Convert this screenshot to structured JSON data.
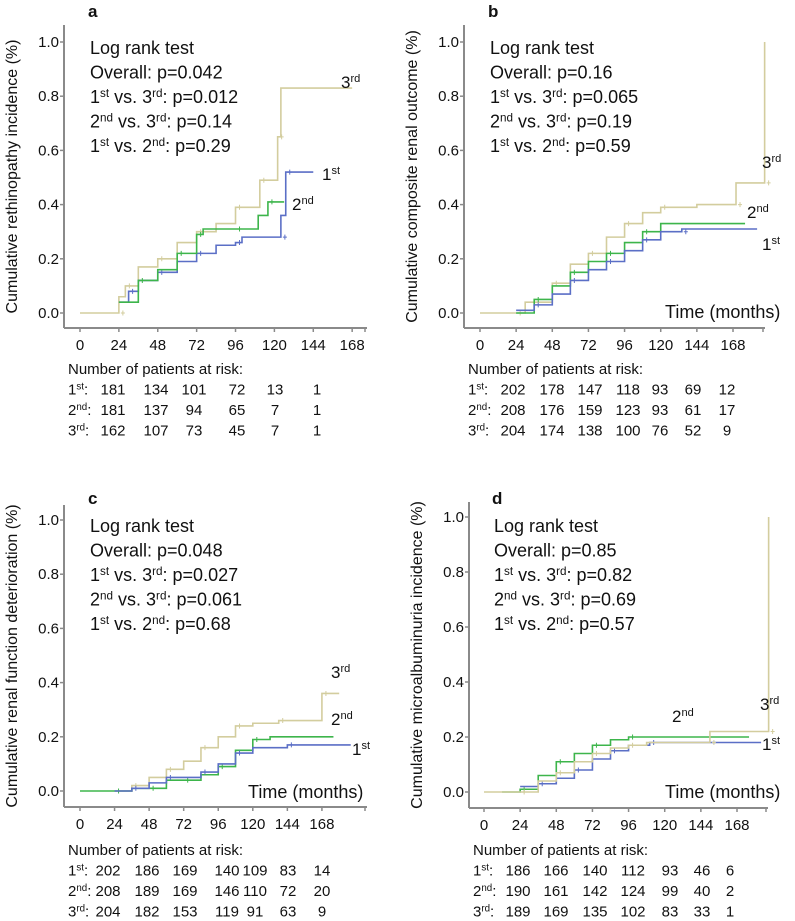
{
  "colors": {
    "1st": "#5b6fc6",
    "2nd": "#3db54b",
    "3rd": "#d3cd9e",
    "axis": "#8a8a8a"
  },
  "chart_data": [
    {
      "type": "line",
      "panel": "a",
      "ylabel": "Cumulative rethinopathy incidence (%)",
      "xlabel": "",
      "yticks": [
        "0.0",
        "0.2",
        "0.4",
        "0.6",
        "0.8",
        "1.0"
      ],
      "xticks": [
        "0",
        "24",
        "48",
        "72",
        "96",
        "120",
        "144",
        "168"
      ],
      "xlim": [
        0,
        176
      ],
      "ylim": [
        0,
        1
      ],
      "stats": [
        [
          "Log rank test"
        ],
        [
          "Overall: p=0.042"
        ],
        [
          "1",
          "st",
          " vs. 3",
          "rd",
          ": p=0.012"
        ],
        [
          "2",
          "nd",
          " vs. 3",
          "rd",
          ": p=0.14"
        ],
        [
          "1",
          "st",
          " vs. 2",
          "nd",
          ": p=0.29"
        ]
      ],
      "risk": {
        "header": "Number of patients at risk:",
        "rows": [
          {
            "group": [
              "1",
              "st",
              ":"
            ],
            "values": [
              "181",
              "134",
              "101",
              "72",
              "13",
              "1"
            ]
          },
          {
            "group": [
              "2",
              "nd",
              ":"
            ],
            "values": [
              "181",
              "137",
              "94",
              "65",
              "7",
              "1"
            ]
          },
          {
            "group": [
              "3",
              "rd",
              ":"
            ],
            "values": [
              "162",
              "107",
              "73",
              "45",
              "7",
              "1"
            ]
          }
        ]
      },
      "series": [
        {
          "name": "3rd",
          "label": [
            "3",
            "rd"
          ],
          "points": [
            [
              0,
              0
            ],
            [
              24,
              0
            ],
            [
              24,
              0.06
            ],
            [
              28,
              0.1
            ],
            [
              36,
              0.17
            ],
            [
              48,
              0.2
            ],
            [
              60,
              0.26
            ],
            [
              72,
              0.3
            ],
            [
              84,
              0.33
            ],
            [
              96,
              0.39
            ],
            [
              111,
              0.39
            ],
            [
              111,
              0.49
            ],
            [
              122,
              0.49
            ],
            [
              122,
              0.65
            ],
            [
              124,
              0.83
            ],
            [
              168,
              0.83
            ]
          ]
        },
        {
          "name": "1st",
          "label": [
            "1",
            "st"
          ],
          "points": [
            [
              24,
              0.04
            ],
            [
              30,
              0.08
            ],
            [
              36,
              0.12
            ],
            [
              48,
              0.15
            ],
            [
              60,
              0.19
            ],
            [
              72,
              0.22
            ],
            [
              84,
              0.25
            ],
            [
              96,
              0.26
            ],
            [
              100,
              0.28
            ],
            [
              124,
              0.28
            ],
            [
              124,
              0.36
            ],
            [
              127,
              0.52
            ],
            [
              144,
              0.52
            ]
          ]
        },
        {
          "name": "2nd",
          "label": [
            "2",
            "nd"
          ],
          "points": [
            [
              24,
              0.04
            ],
            [
              36,
              0.12
            ],
            [
              48,
              0.16
            ],
            [
              60,
              0.22
            ],
            [
              68,
              0.22
            ],
            [
              72,
              0.29
            ],
            [
              76,
              0.31
            ],
            [
              96,
              0.31
            ],
            [
              110,
              0.36
            ],
            [
              116,
              0.41
            ],
            [
              126,
              0.41
            ]
          ]
        }
      ]
    },
    {
      "type": "line",
      "panel": "b",
      "ylabel": "Cumulative composite renal outcome (%)",
      "xlabel": "Time (months)",
      "yticks": [
        "0.0",
        "0.2",
        "0.4",
        "0.6",
        "0.8",
        "1.0"
      ],
      "xticks": [
        "0",
        "24",
        "48",
        "72",
        "96",
        "120",
        "144",
        "168"
      ],
      "xlim": [
        0,
        189
      ],
      "ylim": [
        0,
        1
      ],
      "stats": [
        [
          "Log rank test"
        ],
        [
          "Overall: p=0.16"
        ],
        [
          "1",
          "st",
          " vs. 3",
          "rd",
          ": p=0.065"
        ],
        [
          "2",
          "nd",
          " vs. 3",
          "rd",
          ": p=0.19"
        ],
        [
          "1",
          "st",
          " vs. 2",
          "nd",
          ": p=0.59"
        ]
      ],
      "risk": {
        "header": "Number of patients at risk:",
        "rows": [
          {
            "group": [
              "1",
              "st",
              ":"
            ],
            "values": [
              "202",
              "178",
              "147",
              "118",
              "93",
              "69",
              "12"
            ]
          },
          {
            "group": [
              "2",
              "nd",
              ":"
            ],
            "values": [
              "208",
              "176",
              "159",
              "123",
              "93",
              "61",
              "17"
            ]
          },
          {
            "group": [
              "3",
              "rd",
              ":"
            ],
            "values": [
              "204",
              "174",
              "138",
              "100",
              "76",
              "52",
              "9"
            ]
          }
        ]
      },
      "series": [
        {
          "name": "3rd",
          "label": [
            "3",
            "rd"
          ],
          "points": [
            [
              0,
              0
            ],
            [
              24,
              0
            ],
            [
              30,
              0.04
            ],
            [
              48,
              0.11
            ],
            [
              60,
              0.18
            ],
            [
              72,
              0.22
            ],
            [
              84,
              0.28
            ],
            [
              96,
              0.33
            ],
            [
              108,
              0.37
            ],
            [
              120,
              0.39
            ],
            [
              144,
              0.4
            ],
            [
              170,
              0.4
            ],
            [
              170,
              0.48
            ],
            [
              189,
              0.48
            ],
            [
              189,
              1.0
            ]
          ]
        },
        {
          "name": "2nd",
          "label": [
            "2",
            "nd"
          ],
          "points": [
            [
              24,
              0
            ],
            [
              36,
              0.05
            ],
            [
              48,
              0.1
            ],
            [
              60,
              0.15
            ],
            [
              72,
              0.19
            ],
            [
              84,
              0.22
            ],
            [
              96,
              0.26
            ],
            [
              108,
              0.3
            ],
            [
              120,
              0.33
            ],
            [
              176,
              0.33
            ]
          ]
        },
        {
          "name": "1st",
          "label": [
            "1",
            "st"
          ],
          "points": [
            [
              24,
              0.01
            ],
            [
              36,
              0.03
            ],
            [
              48,
              0.07
            ],
            [
              60,
              0.12
            ],
            [
              72,
              0.16
            ],
            [
              84,
              0.19
            ],
            [
              96,
              0.23
            ],
            [
              108,
              0.27
            ],
            [
              120,
              0.3
            ],
            [
              134,
              0.3
            ],
            [
              134,
              0.31
            ],
            [
              184,
              0.31
            ]
          ]
        }
      ]
    },
    {
      "type": "line",
      "panel": "c",
      "ylabel": "Cumulative  renal function deterioration (%)",
      "xlabel": "Time (months)",
      "yticks": [
        "0.0",
        "0.2",
        "0.4",
        "0.6",
        "0.8",
        "1.0"
      ],
      "xticks": [
        "0",
        "24",
        "48",
        "72",
        "96",
        "120",
        "144",
        "168"
      ],
      "xlim": [
        0,
        199
      ],
      "ylim": [
        0,
        1
      ],
      "stats": [
        [
          "Log rank test"
        ],
        [
          "Overall: p=0.048"
        ],
        [
          "1",
          "st",
          " vs. 3",
          "rd",
          ": p=0.027"
        ],
        [
          "2",
          "nd",
          " vs. 3",
          "rd",
          ": p=0.061"
        ],
        [
          "1",
          "st",
          " vs. 2",
          "nd",
          ": p=0.68"
        ]
      ],
      "risk": {
        "header": "Number of patients at risk:",
        "rows": [
          {
            "group": [
              "1",
              "st",
              ":"
            ],
            "values": [
              "202",
              "186",
              "169",
              "140",
              "109",
              "83",
              "14"
            ]
          },
          {
            "group": [
              "2",
              "nd",
              ":"
            ],
            "values": [
              "208",
              "189",
              "169",
              "146",
              "110",
              "72",
              "20"
            ]
          },
          {
            "group": [
              "3",
              "rd",
              ":"
            ],
            "values": [
              "204",
              "182",
              "153",
              "119",
              "91",
              "63",
              "9"
            ]
          }
        ]
      },
      "series": [
        {
          "name": "3rd",
          "label": [
            "3",
            "rd"
          ],
          "points": [
            [
              24,
              0
            ],
            [
              36,
              0.02
            ],
            [
              48,
              0.05
            ],
            [
              60,
              0.08
            ],
            [
              72,
              0.11
            ],
            [
              84,
              0.16
            ],
            [
              96,
              0.2
            ],
            [
              108,
              0.24
            ],
            [
              120,
              0.25
            ],
            [
              138,
              0.26
            ],
            [
              168,
              0.26
            ],
            [
              168,
              0.36
            ],
            [
              180,
              0.36
            ]
          ]
        },
        {
          "name": "2nd",
          "label": [
            "2",
            "nd"
          ],
          "points": [
            [
              0,
              0
            ],
            [
              24,
              0
            ],
            [
              36,
              0.01
            ],
            [
              48,
              0.01
            ],
            [
              60,
              0.04
            ],
            [
              72,
              0.04
            ],
            [
              84,
              0.06
            ],
            [
              96,
              0.09
            ],
            [
              108,
              0.15
            ],
            [
              120,
              0.19
            ],
            [
              132,
              0.2
            ],
            [
              176,
              0.2
            ]
          ]
        },
        {
          "name": "1st",
          "label": [
            "1",
            "st"
          ],
          "points": [
            [
              24,
              0
            ],
            [
              36,
              0.01
            ],
            [
              48,
              0.03
            ],
            [
              60,
              0.05
            ],
            [
              72,
              0.05
            ],
            [
              84,
              0.07
            ],
            [
              96,
              0.1
            ],
            [
              108,
              0.14
            ],
            [
              120,
              0.16
            ],
            [
              144,
              0.17
            ],
            [
              188,
              0.17
            ]
          ]
        }
      ]
    },
    {
      "type": "line",
      "panel": "d",
      "ylabel": "Cumulative  microalbuminuria incidence (%)",
      "xlabel": "Time (months)",
      "yticks": [
        "0.0",
        "0.2",
        "0.4",
        "0.6",
        "0.8",
        "1.0"
      ],
      "xticks": [
        "0",
        "24",
        "48",
        "72",
        "96",
        "120",
        "144",
        "168"
      ],
      "xlim": [
        0,
        189
      ],
      "ylim": [
        0,
        1
      ],
      "stats": [
        [
          "Log rank test"
        ],
        [
          "Overall: p=0.85"
        ],
        [
          "1",
          "st",
          " vs. 3",
          "rd",
          ": p=0.82"
        ],
        [
          "2",
          "nd",
          " vs. 3",
          "rd",
          ": p=0.69"
        ],
        [
          "1",
          "st",
          " vs. 2",
          "nd",
          ": p=0.57"
        ]
      ],
      "risk": {
        "header": "Number of patients at risk:",
        "rows": [
          {
            "group": [
              "1",
              "st",
              ":"
            ],
            "values": [
              "186",
              "166",
              "140",
              "112",
              "93",
              "46",
              "6"
            ]
          },
          {
            "group": [
              "2",
              "nd",
              ":"
            ],
            "values": [
              "190",
              "161",
              "142",
              "124",
              "99",
              "40",
              "2"
            ]
          },
          {
            "group": [
              "3",
              "rd",
              ":"
            ],
            "values": [
              "189",
              "169",
              "135",
              "102",
              "83",
              "33",
              "1"
            ]
          }
        ]
      },
      "series": [
        {
          "name": "2nd",
          "label": [
            "2",
            "nd"
          ],
          "points": [
            [
              12,
              0
            ],
            [
              24,
              0.01
            ],
            [
              36,
              0.06
            ],
            [
              48,
              0.11
            ],
            [
              60,
              0.14
            ],
            [
              72,
              0.17
            ],
            [
              84,
              0.19
            ],
            [
              96,
              0.2
            ],
            [
              176,
              0.2
            ]
          ]
        },
        {
          "name": "1st",
          "label": [
            "1",
            "st"
          ],
          "points": [
            [
              24,
              0.02
            ],
            [
              36,
              0.03
            ],
            [
              48,
              0.05
            ],
            [
              60,
              0.08
            ],
            [
              72,
              0.12
            ],
            [
              84,
              0.15
            ],
            [
              96,
              0.17
            ],
            [
              110,
              0.18
            ],
            [
              184,
              0.18
            ]
          ]
        },
        {
          "name": "3rd",
          "label": [
            "3",
            "rd"
          ],
          "points": [
            [
              0,
              0
            ],
            [
              24,
              0
            ],
            [
              36,
              0.04
            ],
            [
              48,
              0.07
            ],
            [
              60,
              0.11
            ],
            [
              72,
              0.14
            ],
            [
              84,
              0.16
            ],
            [
              96,
              0.17
            ],
            [
              108,
              0.18
            ],
            [
              150,
              0.18
            ],
            [
              150,
              0.22
            ],
            [
              189,
              0.22
            ],
            [
              189,
              1.0
            ]
          ]
        }
      ]
    }
  ]
}
